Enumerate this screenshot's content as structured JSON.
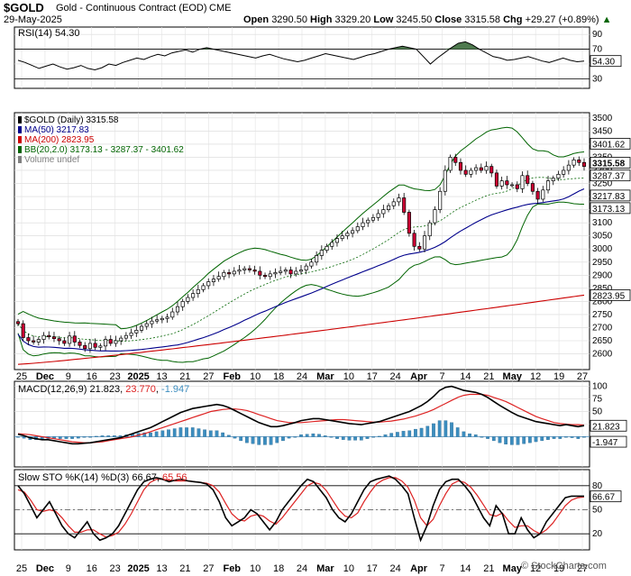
{
  "header": {
    "symbol": "$GOLD",
    "name": "Gold - Continuous Contract (EOD)",
    "exchange": "CME",
    "date": "29-May-2025",
    "open_label": "Open",
    "open": "3290.50",
    "high_label": "High",
    "high": "3329.20",
    "low_label": "Low",
    "low": "3245.50",
    "close_label": "Close",
    "close": "3315.58",
    "chg_label": "Chg",
    "chg": "+29.27 (+0.89%)",
    "watermark": "© StockCharts.com"
  },
  "chart_data": [
    {
      "type": "line",
      "panel": "rsi",
      "title": "RSI(14) 54.30",
      "ylim": [
        17,
        100
      ],
      "ticks": [
        90,
        70,
        50,
        30
      ],
      "reference_lines": [
        70,
        30
      ],
      "last_label": "54.30",
      "series": [
        {
          "name": "RSI(14)",
          "values": [
            55,
            52,
            48,
            44,
            47,
            50,
            46,
            43,
            45,
            48,
            44,
            42,
            45,
            50,
            48,
            52,
            55,
            58,
            56,
            60,
            63,
            61,
            65,
            67,
            69,
            66,
            70,
            72,
            70,
            68,
            66,
            64,
            62,
            60,
            58,
            61,
            63,
            60,
            57,
            55,
            53,
            55,
            58,
            61,
            64,
            62,
            60,
            58,
            56,
            59,
            62,
            64,
            67,
            70,
            72,
            74,
            72,
            70,
            60,
            50,
            58,
            65,
            72,
            78,
            80,
            76,
            70,
            65,
            60,
            58,
            55,
            56,
            58,
            60,
            57,
            54,
            52,
            55,
            58,
            55,
            53,
            54
          ]
        }
      ]
    },
    {
      "type": "candlestick",
      "panel": "price",
      "title": "$GOLD (Daily) 3315.58",
      "ylim": [
        2540,
        3520
      ],
      "ticks": [
        3500,
        3450,
        3400,
        3350,
        3300,
        3250,
        3200,
        3150,
        3100,
        3050,
        3000,
        2950,
        2900,
        2850,
        2800,
        2750,
        2700,
        2650,
        2600
      ],
      "x_ticks": [
        "25",
        "Dec",
        "9",
        "16",
        "23",
        "2025",
        "13",
        "21",
        "27",
        "Feb",
        "10",
        "18",
        "24",
        "Mar",
        "10",
        "17",
        "24",
        "Apr",
        "7",
        "14",
        "21",
        "May",
        "12",
        "19",
        "27"
      ],
      "legend": [
        {
          "label": "$GOLD (Daily) 3315.58",
          "color": "#000000"
        },
        {
          "label": "MA(50) 3217.83",
          "color": "#00008b"
        },
        {
          "label": "MA(200) 2823.95",
          "color": "#cc0000"
        },
        {
          "label": "BB(20,2.0) 3173.13 - 3287.37 - 3401.62",
          "color": "#006400"
        },
        {
          "label": "Volume undef",
          "color": "#808080"
        }
      ],
      "closes": [
        2715,
        2662,
        2650,
        2645,
        2655,
        2670,
        2665,
        2658,
        2650,
        2640,
        2668,
        2645,
        2632,
        2620,
        2640,
        2625,
        2630,
        2655,
        2640,
        2650,
        2660,
        2670,
        2680,
        2690,
        2705,
        2715,
        2725,
        2730,
        2735,
        2740,
        2760,
        2780,
        2800,
        2815,
        2830,
        2845,
        2860,
        2875,
        2885,
        2895,
        2910,
        2905,
        2915,
        2920,
        2925,
        2920,
        2915,
        2900,
        2895,
        2905,
        2910,
        2915,
        2920,
        2905,
        2915,
        2920,
        2935,
        2950,
        2975,
        2995,
        3010,
        3025,
        3040,
        3050,
        3060,
        3070,
        3085,
        3100,
        3110,
        3120,
        3135,
        3150,
        3165,
        3180,
        3195,
        3140,
        3060,
        3010,
        3000,
        3050,
        3100,
        3150,
        3220,
        3300,
        3350,
        3330,
        3300,
        3285,
        3300,
        3310,
        3300,
        3315,
        3290,
        3240,
        3260,
        3245,
        3245,
        3230,
        3280,
        3250,
        3220,
        3190,
        3225,
        3260,
        3270,
        3285,
        3300,
        3320,
        3340,
        3330,
        3315
      ],
      "series": [
        {
          "name": "MA(50) 3217.83",
          "last": 3217.83,
          "label": "3217.83"
        },
        {
          "name": "MA(200) 2823.95",
          "last": 2823.95,
          "label": "2823.95"
        },
        {
          "name": "BB upper",
          "last": 3401.62,
          "label": "3401.62"
        },
        {
          "name": "BB middle",
          "last": 3287.37,
          "label": "3287.37"
        },
        {
          "name": "BB lower",
          "last": 3173.13,
          "label": "3173.13"
        }
      ],
      "last_label": "3315.58"
    },
    {
      "type": "line",
      "panel": "macd",
      "title": "MACD(12,26,9) 21.823, 23.770, -1.947",
      "title_parts": [
        "MACD(12,26,9) ",
        "21.823",
        ", ",
        "23.770",
        ", ",
        "-1.947"
      ],
      "ylim": [
        -60,
        110
      ],
      "ticks": [
        100,
        75,
        50,
        25
      ],
      "series": [
        {
          "name": "MACD",
          "last_label": "21.823",
          "values": [
            5,
            2,
            -2,
            -4,
            -6,
            -6,
            -8,
            -10,
            -12,
            -14,
            -14,
            -13,
            -12,
            -10,
            -8,
            -6,
            -4,
            -2,
            2,
            6,
            10,
            14,
            18,
            24,
            30,
            36,
            42,
            48,
            52,
            56,
            58,
            60,
            62,
            64,
            62,
            58,
            52,
            46,
            40,
            34,
            28,
            24,
            20,
            20,
            22,
            25,
            28,
            32,
            34,
            36,
            36,
            34,
            32,
            30,
            28,
            26,
            25,
            24,
            26,
            28,
            30,
            34,
            38,
            42,
            46,
            50,
            56,
            62,
            70,
            80,
            92,
            98,
            100,
            96,
            92,
            90,
            88,
            84,
            78,
            70,
            62,
            55,
            48,
            42,
            38,
            34,
            30,
            28,
            26,
            24,
            22,
            24,
            22,
            20,
            22
          ]
        },
        {
          "name": "Signal",
          "last_label": "23.770",
          "values": [
            6,
            5,
            4,
            2,
            0,
            -2,
            -4,
            -6,
            -8,
            -10,
            -11,
            -12,
            -12,
            -11,
            -10,
            -8,
            -6,
            -4,
            -2,
            0,
            3,
            6,
            10,
            14,
            18,
            22,
            26,
            30,
            34,
            38,
            42,
            46,
            50,
            52,
            54,
            55,
            55,
            54,
            52,
            48,
            44,
            40,
            36,
            32,
            30,
            28,
            28,
            28,
            29,
            30,
            31,
            32,
            33,
            34,
            34,
            33,
            32,
            31,
            30,
            29,
            29,
            30,
            31,
            33,
            35,
            38,
            41,
            45,
            49,
            54,
            60,
            66,
            72,
            78,
            82,
            84,
            84,
            84,
            82,
            78,
            74,
            70,
            64,
            58,
            52,
            46,
            40,
            36,
            32,
            28,
            26,
            25,
            24,
            24,
            23
          ]
        },
        {
          "name": "Histogram",
          "last_label": "-1.947",
          "values": [
            -1,
            -3,
            -6,
            -6,
            -6,
            -4,
            -4,
            -4,
            -4,
            -4,
            -3,
            -1,
            0,
            1,
            2,
            2,
            2,
            2,
            4,
            6,
            7,
            8,
            8,
            10,
            12,
            14,
            16,
            18,
            18,
            18,
            16,
            14,
            12,
            12,
            8,
            3,
            -3,
            -8,
            -12,
            -14,
            -16,
            -16,
            -16,
            -12,
            -8,
            -3,
            0,
            4,
            5,
            6,
            5,
            2,
            -1,
            -4,
            -6,
            -7,
            -7,
            -7,
            -4,
            -1,
            1,
            4,
            7,
            9,
            11,
            12,
            15,
            17,
            21,
            26,
            32,
            32,
            28,
            18,
            10,
            6,
            4,
            0,
            -4,
            -8,
            -12,
            -15,
            -16,
            -16,
            -14,
            -12,
            -10,
            -8,
            -6,
            -4,
            -4,
            -1,
            -2,
            -4,
            -1
          ]
        }
      ]
    },
    {
      "type": "line",
      "panel": "stochastic",
      "title": "Slow STO %K(14) %D(3) 66.67, 65.56",
      "title_parts": [
        "Slow STO %K(14) %D(3) ",
        "66.67",
        ", ",
        "65.56"
      ],
      "ylim": [
        0,
        100
      ],
      "ticks": [
        80,
        50,
        20
      ],
      "reference_lines": [
        80,
        20
      ],
      "x_ticks": [
        "25",
        "Dec",
        "9",
        "16",
        "23",
        "2025",
        "13",
        "21",
        "27",
        "Feb",
        "10",
        "18",
        "24",
        "Mar",
        "10",
        "17",
        "24",
        "Apr",
        "7",
        "14",
        "21",
        "May",
        "12",
        "19",
        "27"
      ],
      "series": [
        {
          "name": "%K(14)",
          "last_label": "66.67",
          "values": [
            80,
            70,
            55,
            40,
            50,
            60,
            45,
            30,
            20,
            15,
            25,
            35,
            20,
            12,
            15,
            20,
            30,
            45,
            60,
            75,
            85,
            88,
            90,
            88,
            85,
            87,
            88,
            86,
            85,
            84,
            82,
            75,
            60,
            40,
            30,
            35,
            40,
            50,
            45,
            35,
            25,
            35,
            50,
            60,
            70,
            80,
            88,
            85,
            75,
            65,
            50,
            40,
            35,
            45,
            60,
            75,
            85,
            88,
            90,
            92,
            88,
            80,
            70,
            40,
            12,
            30,
            55,
            75,
            85,
            88,
            88,
            80,
            70,
            55,
            40,
            30,
            55,
            45,
            20,
            20,
            40,
            25,
            15,
            20,
            35,
            45,
            55,
            65,
            67,
            67,
            67
          ]
        },
        {
          "name": "%D(3)",
          "last_label": "65.56",
          "values": [
            75,
            72,
            62,
            50,
            48,
            50,
            48,
            40,
            30,
            22,
            22,
            25,
            25,
            20,
            16,
            18,
            22,
            32,
            45,
            60,
            75,
            84,
            88,
            88,
            87,
            86,
            86,
            86,
            85,
            84,
            83,
            80,
            72,
            58,
            45,
            38,
            36,
            42,
            44,
            42,
            36,
            32,
            40,
            50,
            60,
            70,
            80,
            84,
            82,
            74,
            62,
            50,
            42,
            40,
            46,
            60,
            72,
            82,
            87,
            90,
            90,
            86,
            78,
            62,
            40,
            30,
            38,
            55,
            70,
            82,
            86,
            84,
            78,
            68,
            56,
            44,
            42,
            46,
            36,
            28,
            30,
            30,
            24,
            20,
            25,
            33,
            44,
            55,
            62,
            65,
            66
          ]
        }
      ]
    }
  ]
}
